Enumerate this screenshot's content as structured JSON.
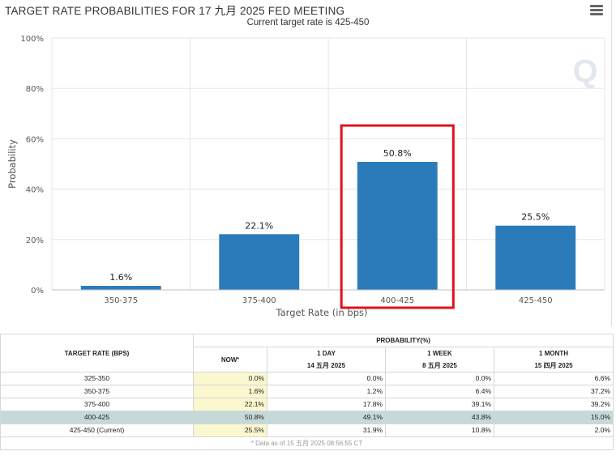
{
  "chart": {
    "title": "TARGET RATE PROBABILITIES FOR 17 九月 2025 FED MEETING",
    "subtitle": "Current target rate is 425-450"
  },
  "chart_data": {
    "type": "bar",
    "categories": [
      "350-375",
      "375-400",
      "400-425",
      "425-450"
    ],
    "values": [
      1.6,
      22.1,
      50.8,
      25.5
    ],
    "data_labels": [
      "1.6%",
      "22.1%",
      "50.8%",
      "25.5%"
    ],
    "ylabel": "Probability",
    "xlabel": "Target Rate (in bps)",
    "ylim": [
      0,
      100
    ],
    "yticks": [
      "0%",
      "20%",
      "40%",
      "60%",
      "80%",
      "100%"
    ],
    "ytick_values": [
      0,
      20,
      40,
      60,
      80,
      100
    ],
    "bar_color": "#2b7bba",
    "highlight_category": "400-425",
    "highlight_color": "#e0121b",
    "grid": true
  },
  "table": {
    "header_rate": "TARGET RATE (BPS)",
    "header_probability": "PROBABILITY(%)",
    "col_now": "NOW",
    "col_now_mark": "*",
    "col_1day": [
      "1 DAY",
      "14 五月 2025"
    ],
    "col_1week": [
      "1 WEEK",
      "8 五月 2025"
    ],
    "col_1month": [
      "1 MONTH",
      "15 四月 2025"
    ],
    "rows": [
      {
        "rate": "325-350",
        "now": "0.0%",
        "d1": "0.0%",
        "w1": "0.0%",
        "m1": "6.6%"
      },
      {
        "rate": "350-375",
        "now": "1.6%",
        "d1": "1.2%",
        "w1": "6.4%",
        "m1": "37.2%"
      },
      {
        "rate": "375-400",
        "now": "22.1%",
        "d1": "17.8%",
        "w1": "39.1%",
        "m1": "39.2%"
      },
      {
        "rate": "400-425",
        "now": "50.8%",
        "d1": "49.1%",
        "w1": "43.8%",
        "m1": "15.0%"
      },
      {
        "rate": "425-450 (Current)",
        "now": "25.5%",
        "d1": "31.9%",
        "w1": "10.8%",
        "m1": "2.0%"
      }
    ],
    "note": "* Data as of 15 五月 2025 08:56:55 CT"
  }
}
